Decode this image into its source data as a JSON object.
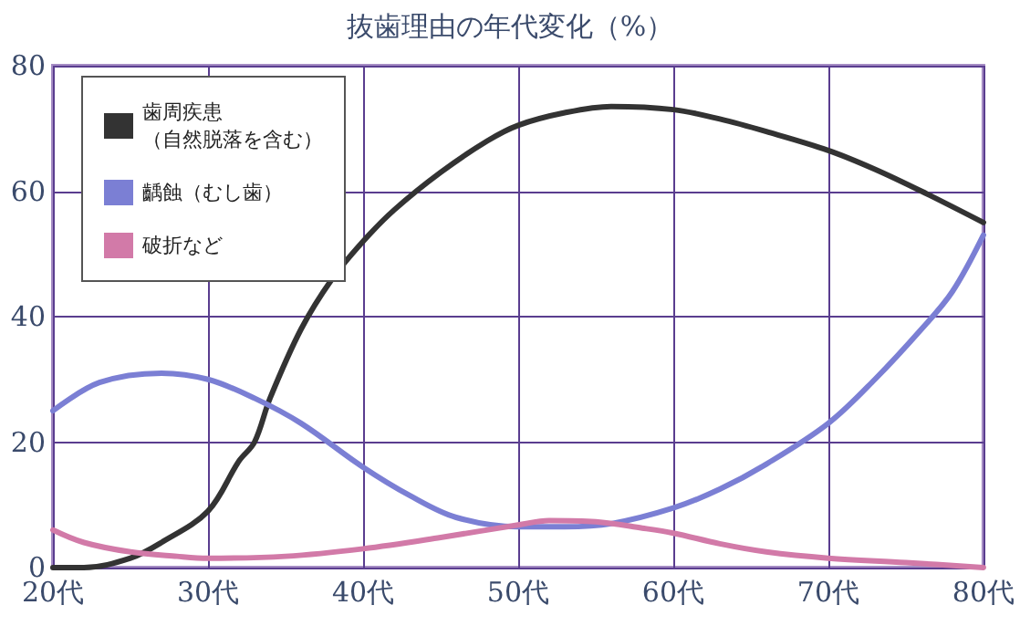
{
  "chart_data": {
    "type": "line",
    "title": "抜歯理由の年代変化（%）",
    "xlim": [
      20,
      80
    ],
    "xticks": [
      {
        "value": 20,
        "label": "20代"
      },
      {
        "value": 30,
        "label": "30代"
      },
      {
        "value": 40,
        "label": "40代"
      },
      {
        "value": 50,
        "label": "50代"
      },
      {
        "value": 60,
        "label": "60代"
      },
      {
        "value": 70,
        "label": "70代"
      },
      {
        "value": 80,
        "label": "80代"
      }
    ],
    "ylim": [
      0,
      80
    ],
    "yticks": [
      0,
      20,
      40,
      60,
      80
    ],
    "grid": true,
    "legend": "top left",
    "marker": "none",
    "line_style": "solid",
    "series": [
      {
        "name": "歯周疾患（自然脱落を含む）",
        "color": "#333333",
        "x": [
          20,
          22,
          25,
          27,
          30,
          32,
          33,
          34,
          36,
          38,
          40,
          42,
          45,
          48,
          50,
          53,
          56,
          60,
          63,
          66,
          70,
          73,
          76,
          80
        ],
        "values": [
          0,
          0,
          1.5,
          4,
          9,
          17,
          20,
          27,
          38,
          46,
          52,
          57,
          63,
          68,
          70.5,
          72.5,
          73.5,
          73,
          71.5,
          69.5,
          66.5,
          63.5,
          60,
          55
        ]
      },
      {
        "name": "齲蝕（むし歯）",
        "color": "#7b7fd4",
        "x": [
          20,
          23,
          27,
          30,
          33,
          36,
          40,
          43,
          46,
          50,
          53,
          56,
          60,
          63,
          66,
          70,
          73,
          76,
          78,
          80
        ],
        "values": [
          25,
          29.5,
          31,
          30,
          27,
          23,
          16,
          11.5,
          8,
          6.5,
          6.5,
          7,
          9.5,
          12.5,
          16.5,
          23,
          30,
          38,
          44,
          53
        ]
      },
      {
        "name": "破折など",
        "color": "#d27aa8",
        "x": [
          20,
          22,
          25,
          28,
          30,
          35,
          40,
          45,
          50,
          52,
          55,
          58,
          60,
          63,
          66,
          70,
          75,
          80
        ],
        "values": [
          6,
          4,
          2.5,
          1.8,
          1.5,
          1.8,
          3,
          4.8,
          6.8,
          7.5,
          7.3,
          6.3,
          5.5,
          3.8,
          2.5,
          1.5,
          0.8,
          0
        ]
      }
    ]
  }
}
